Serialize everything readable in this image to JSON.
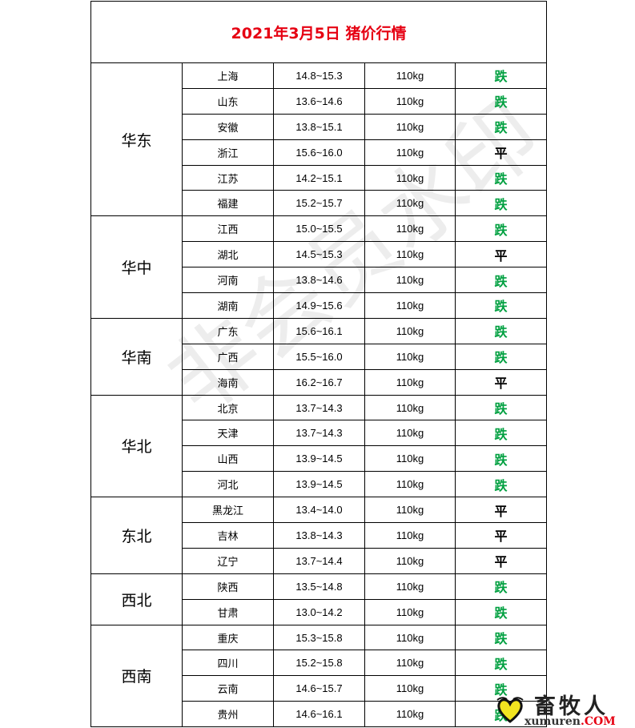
{
  "title": "2021年3月5日  猪价行情",
  "watermark": "非会员水印",
  "colors": {
    "title": "#e60012",
    "down": "#00a040",
    "flat": "#000000"
  },
  "regions": [
    {
      "name": "华东",
      "rows": [
        {
          "province": "上海",
          "price": "14.8~15.3",
          "weight": "110kg",
          "trend": "跌"
        },
        {
          "province": "山东",
          "price": "13.6~14.6",
          "weight": "110kg",
          "trend": "跌"
        },
        {
          "province": "安徽",
          "price": "13.8~15.1",
          "weight": "110kg",
          "trend": "跌"
        },
        {
          "province": "浙江",
          "price": "15.6~16.0",
          "weight": "110kg",
          "trend": "平"
        },
        {
          "province": "江苏",
          "price": "14.2~15.1",
          "weight": "110kg",
          "trend": "跌"
        },
        {
          "province": "福建",
          "price": "15.2~15.7",
          "weight": "110kg",
          "trend": "跌"
        }
      ]
    },
    {
      "name": "华中",
      "rows": [
        {
          "province": "江西",
          "price": "15.0~15.5",
          "weight": "110kg",
          "trend": "跌"
        },
        {
          "province": "湖北",
          "price": "14.5~15.3",
          "weight": "110kg",
          "trend": "平"
        },
        {
          "province": "河南",
          "price": "13.8~14.6",
          "weight": "110kg",
          "trend": "跌"
        },
        {
          "province": "湖南",
          "price": "14.9~15.6",
          "weight": "110kg",
          "trend": "跌"
        }
      ]
    },
    {
      "name": "华南",
      "rows": [
        {
          "province": "广东",
          "price": "15.6~16.1",
          "weight": "110kg",
          "trend": "跌"
        },
        {
          "province": "广西",
          "price": "15.5~16.0",
          "weight": "110kg",
          "trend": "跌"
        },
        {
          "province": "海南",
          "price": "16.2~16.7",
          "weight": "110kg",
          "trend": "平"
        }
      ]
    },
    {
      "name": "华北",
      "rows": [
        {
          "province": "北京",
          "price": "13.7~14.3",
          "weight": "110kg",
          "trend": "跌"
        },
        {
          "province": "天津",
          "price": "13.7~14.3",
          "weight": "110kg",
          "trend": "跌"
        },
        {
          "province": "山西",
          "price": "13.9~14.5",
          "weight": "110kg",
          "trend": "跌"
        },
        {
          "province": "河北",
          "price": "13.9~14.5",
          "weight": "110kg",
          "trend": "跌"
        }
      ]
    },
    {
      "name": "东北",
      "rows": [
        {
          "province": "黑龙江",
          "price": "13.4~14.0",
          "weight": "110kg",
          "trend": "平"
        },
        {
          "province": "吉林",
          "price": "13.8~14.3",
          "weight": "110kg",
          "trend": "平"
        },
        {
          "province": "辽宁",
          "price": "13.7~14.4",
          "weight": "110kg",
          "trend": "平"
        }
      ]
    },
    {
      "name": "西北",
      "rows": [
        {
          "province": "陕西",
          "price": "13.5~14.8",
          "weight": "110kg",
          "trend": "跌"
        },
        {
          "province": "甘肃",
          "price": "13.0~14.2",
          "weight": "110kg",
          "trend": "跌"
        }
      ]
    },
    {
      "name": "西南",
      "rows": [
        {
          "province": "重庆",
          "price": "15.3~15.8",
          "weight": "110kg",
          "trend": "跌"
        },
        {
          "province": "四川",
          "price": "15.2~15.8",
          "weight": "110kg",
          "trend": "跌"
        },
        {
          "province": "云南",
          "price": "14.6~15.7",
          "weight": "110kg",
          "trend": "跌"
        },
        {
          "province": "贵州",
          "price": "14.6~16.1",
          "weight": "110kg",
          "trend": "跌"
        }
      ]
    }
  ],
  "logo": {
    "name": "畜牧人",
    "domain": "xumuren",
    "tld": ".COM"
  }
}
